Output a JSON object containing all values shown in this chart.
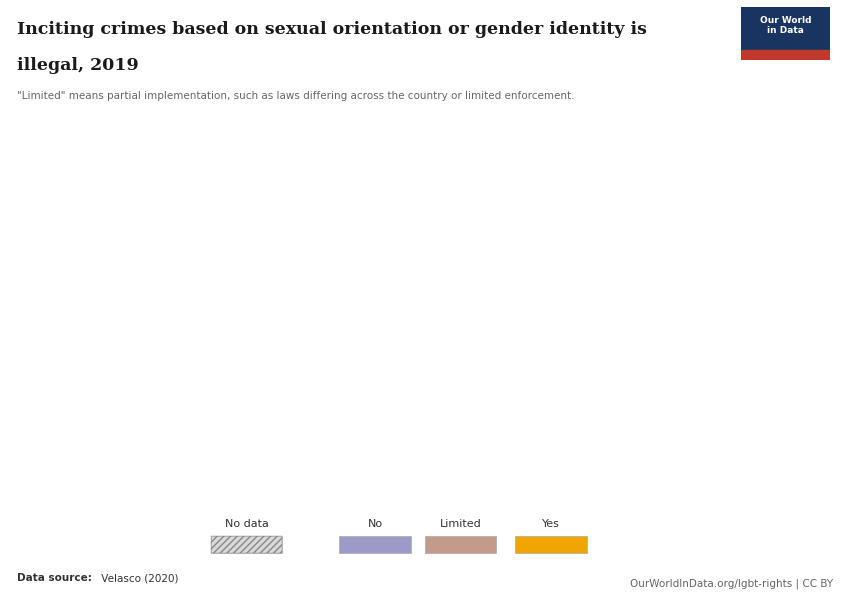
{
  "title_line1": "Inciting crimes based on sexual orientation or gender identity is",
  "title_line2": "illegal, 2019",
  "subtitle": "\"Limited\" means partial implementation, such as laws differing across the country or limited enforcement.",
  "data_source_bold": "Data source:",
  "data_source_normal": " Velasco (2020)",
  "owid_url": "OurWorldInData.org/lgbt-rights | CC BY",
  "colors": {
    "no_data": "#d9d9d9",
    "no": "#9e9ac8",
    "limited": "#c49a8a",
    "yes": "#f0a500",
    "background": "#ffffff",
    "owid_box_bg": "#1a3461",
    "owid_box_red": "#c0392b",
    "ocean": "#ffffff"
  }
}
